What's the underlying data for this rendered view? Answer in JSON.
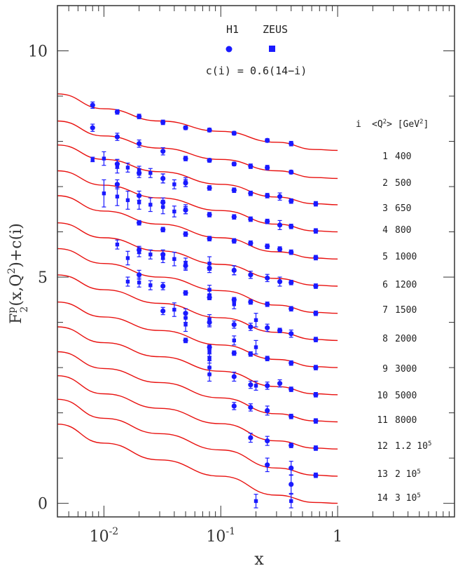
{
  "chart_data": {
    "type": "scatter",
    "title": "",
    "xlabel": "x",
    "ylabel": "F2p(x,Q2)+c(i)",
    "x_scale": "log",
    "xlim": [
      0.004,
      10
    ],
    "ylim": [
      -0.3,
      11
    ],
    "y_ticks": [
      0,
      5,
      10
    ],
    "x_tick_labels": [
      "10^-2",
      "10^-1",
      "1"
    ],
    "offset_formula": "c(i) = 0.6(14−i)",
    "table_header": {
      "i": "i",
      "q2": "<Q²> [GeV²]"
    },
    "bins": [
      {
        "i": "1",
        "q2": "400"
      },
      {
        "i": "2",
        "q2": "500"
      },
      {
        "i": "3",
        "q2": "650"
      },
      {
        "i": "4",
        "q2": "800"
      },
      {
        "i": "5",
        "q2": "1000"
      },
      {
        "i": "6",
        "q2": "1200"
      },
      {
        "i": "7",
        "q2": "1500"
      },
      {
        "i": "8",
        "q2": "2000"
      },
      {
        "i": "9",
        "q2": "3000"
      },
      {
        "i": "10",
        "q2": "5000"
      },
      {
        "i": "11",
        "q2": "8000"
      },
      {
        "i": "12",
        "q2": "1.2 10^5"
      },
      {
        "i": "13",
        "q2": "2 10^5"
      },
      {
        "i": "14",
        "q2": "3 10^5"
      }
    ],
    "curves": [
      {
        "bin": 1,
        "points": [
          [
            0.004,
            9.05
          ],
          [
            0.01,
            8.72
          ],
          [
            0.03,
            8.45
          ],
          [
            0.1,
            8.22
          ],
          [
            0.3,
            7.98
          ],
          [
            0.65,
            7.82
          ],
          [
            1.0,
            7.8
          ]
        ]
      },
      {
        "bin": 2,
        "points": [
          [
            0.004,
            8.45
          ],
          [
            0.01,
            8.12
          ],
          [
            0.03,
            7.85
          ],
          [
            0.1,
            7.6
          ],
          [
            0.3,
            7.35
          ],
          [
            0.65,
            7.2
          ],
          [
            1.0,
            7.18
          ]
        ]
      },
      {
        "bin": 3,
        "points": [
          [
            0.004,
            7.92
          ],
          [
            0.01,
            7.6
          ],
          [
            0.03,
            7.33
          ],
          [
            0.1,
            7.05
          ],
          [
            0.3,
            6.77
          ],
          [
            0.65,
            6.62
          ],
          [
            1.0,
            6.6
          ]
        ]
      },
      {
        "bin": 4,
        "points": [
          [
            0.004,
            7.35
          ],
          [
            0.01,
            7.03
          ],
          [
            0.03,
            6.75
          ],
          [
            0.1,
            6.47
          ],
          [
            0.3,
            6.17
          ],
          [
            0.65,
            6.02
          ],
          [
            1.0,
            6.0
          ]
        ]
      },
      {
        "bin": 5,
        "points": [
          [
            0.004,
            6.8
          ],
          [
            0.01,
            6.46
          ],
          [
            0.03,
            6.17
          ],
          [
            0.1,
            5.87
          ],
          [
            0.3,
            5.56
          ],
          [
            0.65,
            5.42
          ],
          [
            1.0,
            5.4
          ]
        ]
      },
      {
        "bin": 6,
        "points": [
          [
            0.004,
            6.2
          ],
          [
            0.01,
            5.87
          ],
          [
            0.03,
            5.58
          ],
          [
            0.1,
            5.28
          ],
          [
            0.3,
            4.97
          ],
          [
            0.65,
            4.82
          ],
          [
            1.0,
            4.8
          ]
        ]
      },
      {
        "bin": 7,
        "points": [
          [
            0.004,
            5.63
          ],
          [
            0.01,
            5.3
          ],
          [
            0.03,
            5.0
          ],
          [
            0.1,
            4.7
          ],
          [
            0.3,
            4.38
          ],
          [
            0.65,
            4.22
          ],
          [
            1.0,
            4.2
          ]
        ]
      },
      {
        "bin": 8,
        "points": [
          [
            0.004,
            5.05
          ],
          [
            0.01,
            4.72
          ],
          [
            0.03,
            4.42
          ],
          [
            0.1,
            4.1
          ],
          [
            0.3,
            3.78
          ],
          [
            0.65,
            3.62
          ],
          [
            1.0,
            3.6
          ]
        ]
      },
      {
        "bin": 9,
        "points": [
          [
            0.004,
            4.45
          ],
          [
            0.01,
            4.12
          ],
          [
            0.03,
            3.82
          ],
          [
            0.1,
            3.5
          ],
          [
            0.3,
            3.18
          ],
          [
            0.65,
            3.02
          ],
          [
            1.0,
            3.0
          ]
        ]
      },
      {
        "bin": 10,
        "points": [
          [
            0.004,
            3.9
          ],
          [
            0.01,
            3.55
          ],
          [
            0.03,
            3.24
          ],
          [
            0.1,
            2.92
          ],
          [
            0.3,
            2.58
          ],
          [
            0.65,
            2.42
          ],
          [
            1.0,
            2.4
          ]
        ]
      },
      {
        "bin": 11,
        "points": [
          [
            0.004,
            3.35
          ],
          [
            0.01,
            2.98
          ],
          [
            0.03,
            2.67
          ],
          [
            0.1,
            2.33
          ],
          [
            0.3,
            1.98
          ],
          [
            0.65,
            1.82
          ],
          [
            1.0,
            1.8
          ]
        ]
      },
      {
        "bin": 12,
        "points": [
          [
            0.004,
            2.82
          ],
          [
            0.01,
            2.42
          ],
          [
            0.03,
            2.1
          ],
          [
            0.1,
            1.76
          ],
          [
            0.3,
            1.38
          ],
          [
            0.65,
            1.22
          ],
          [
            1.0,
            1.2
          ]
        ]
      },
      {
        "bin": 13,
        "points": [
          [
            0.004,
            2.3
          ],
          [
            0.01,
            1.88
          ],
          [
            0.03,
            1.54
          ],
          [
            0.1,
            1.18
          ],
          [
            0.3,
            0.78
          ],
          [
            0.65,
            0.62
          ],
          [
            1.0,
            0.6
          ]
        ]
      },
      {
        "bin": 14,
        "points": [
          [
            0.004,
            1.75
          ],
          [
            0.01,
            1.33
          ],
          [
            0.03,
            0.96
          ],
          [
            0.1,
            0.6
          ],
          [
            0.3,
            0.18
          ],
          [
            0.65,
            0.02
          ],
          [
            1.0,
            0.0
          ]
        ]
      }
    ],
    "series": [
      {
        "name": "H1",
        "marker": "circle",
        "color": "#1a1aff",
        "points": [
          [
            0.008,
            8.8,
            0.07
          ],
          [
            0.013,
            8.65,
            0.05
          ],
          [
            0.02,
            8.55,
            0.05
          ],
          [
            0.032,
            8.42,
            0.05
          ],
          [
            0.05,
            8.3,
            0.04
          ],
          [
            0.08,
            8.25,
            0.04
          ],
          [
            0.13,
            8.18,
            0.04
          ],
          [
            0.25,
            8.02,
            0.04
          ],
          [
            0.4,
            7.95,
            0.05
          ],
          [
            0.008,
            8.3,
            0.08
          ],
          [
            0.013,
            8.1,
            0.08
          ],
          [
            0.02,
            7.95,
            0.08
          ],
          [
            0.032,
            7.78,
            0.08
          ],
          [
            0.05,
            7.62,
            0.05
          ],
          [
            0.08,
            7.58,
            0.04
          ],
          [
            0.13,
            7.5,
            0.04
          ],
          [
            0.18,
            7.45,
            0.05
          ],
          [
            0.25,
            7.42,
            0.05
          ],
          [
            0.4,
            7.32,
            0.04
          ],
          [
            0.013,
            7.5,
            0.1
          ],
          [
            0.02,
            7.3,
            0.1
          ],
          [
            0.032,
            7.18,
            0.1
          ],
          [
            0.05,
            7.08,
            0.08
          ],
          [
            0.08,
            6.97,
            0.05
          ],
          [
            0.13,
            6.92,
            0.05
          ],
          [
            0.18,
            6.85,
            0.05
          ],
          [
            0.25,
            6.8,
            0.05
          ],
          [
            0.32,
            6.78,
            0.08
          ],
          [
            0.4,
            6.68,
            0.05
          ],
          [
            0.65,
            6.62,
            0.05
          ],
          [
            0.013,
            7.05,
            0.1
          ],
          [
            0.02,
            6.8,
            0.1
          ],
          [
            0.032,
            6.65,
            0.1
          ],
          [
            0.05,
            6.48,
            0.08
          ],
          [
            0.08,
            6.38,
            0.05
          ],
          [
            0.13,
            6.33,
            0.05
          ],
          [
            0.18,
            6.28,
            0.05
          ],
          [
            0.25,
            6.23,
            0.05
          ],
          [
            0.32,
            6.15,
            0.1
          ],
          [
            0.4,
            6.12,
            0.05
          ],
          [
            0.65,
            6.02,
            0.05
          ],
          [
            0.02,
            6.2,
            0.05
          ],
          [
            0.032,
            6.05,
            0.05
          ],
          [
            0.05,
            5.95,
            0.05
          ],
          [
            0.08,
            5.85,
            0.05
          ],
          [
            0.13,
            5.8,
            0.05
          ],
          [
            0.18,
            5.75,
            0.05
          ],
          [
            0.25,
            5.68,
            0.05
          ],
          [
            0.32,
            5.62,
            0.05
          ],
          [
            0.4,
            5.55,
            0.05
          ],
          [
            0.65,
            5.43,
            0.05
          ],
          [
            0.02,
            5.6,
            0.08
          ],
          [
            0.032,
            5.5,
            0.1
          ],
          [
            0.05,
            5.25,
            0.1
          ],
          [
            0.08,
            5.2,
            0.1
          ],
          [
            0.13,
            5.15,
            0.1
          ],
          [
            0.18,
            5.05,
            0.08
          ],
          [
            0.25,
            4.98,
            0.08
          ],
          [
            0.32,
            4.9,
            0.1
          ],
          [
            0.4,
            4.88,
            0.05
          ],
          [
            0.65,
            4.8,
            0.05
          ],
          [
            0.02,
            5.05,
            0.1
          ],
          [
            0.032,
            4.8,
            0.08
          ],
          [
            0.05,
            4.65,
            0.05
          ],
          [
            0.08,
            4.55,
            0.05
          ],
          [
            0.13,
            4.5,
            0.05
          ],
          [
            0.18,
            4.45,
            0.05
          ],
          [
            0.25,
            4.4,
            0.05
          ],
          [
            0.4,
            4.3,
            0.05
          ],
          [
            0.65,
            4.2,
            0.05
          ],
          [
            0.032,
            4.25,
            0.08
          ],
          [
            0.05,
            4.2,
            0.1
          ],
          [
            0.08,
            4.0,
            0.1
          ],
          [
            0.13,
            3.95,
            0.08
          ],
          [
            0.18,
            3.9,
            0.08
          ],
          [
            0.25,
            3.88,
            0.08
          ],
          [
            0.32,
            3.82,
            0.05
          ],
          [
            0.4,
            3.75,
            0.08
          ],
          [
            0.65,
            3.62,
            0.05
          ],
          [
            0.05,
            3.6,
            0.05
          ],
          [
            0.08,
            3.45,
            0.05
          ],
          [
            0.13,
            3.32,
            0.05
          ],
          [
            0.18,
            3.3,
            0.05
          ],
          [
            0.25,
            3.2,
            0.05
          ],
          [
            0.4,
            3.1,
            0.05
          ],
          [
            0.65,
            3.0,
            0.05
          ],
          [
            0.13,
            2.8,
            0.1
          ],
          [
            0.18,
            2.62,
            0.08
          ],
          [
            0.25,
            2.6,
            0.08
          ],
          [
            0.32,
            2.65,
            0.08
          ],
          [
            0.4,
            2.52,
            0.05
          ],
          [
            0.65,
            2.4,
            0.05
          ],
          [
            0.13,
            2.15,
            0.08
          ],
          [
            0.18,
            2.12,
            0.08
          ],
          [
            0.25,
            2.05,
            0.1
          ],
          [
            0.4,
            1.92,
            0.05
          ],
          [
            0.65,
            1.82,
            0.05
          ],
          [
            0.18,
            1.45,
            0.1
          ],
          [
            0.25,
            1.38,
            0.1
          ],
          [
            0.4,
            1.28,
            0.05
          ],
          [
            0.65,
            1.22,
            0.05
          ],
          [
            0.25,
            0.85,
            0.15
          ],
          [
            0.4,
            0.78,
            0.15
          ],
          [
            0.65,
            0.62,
            0.05
          ],
          [
            0.4,
            0.42,
            0.2
          ]
        ]
      },
      {
        "name": "ZEUS",
        "marker": "square",
        "color": "#1a1aff",
        "points": [
          [
            0.008,
            7.6,
            0.05
          ],
          [
            0.01,
            7.62,
            0.15
          ],
          [
            0.013,
            7.45,
            0.15
          ],
          [
            0.016,
            7.42,
            0.1
          ],
          [
            0.02,
            7.35,
            0.1
          ],
          [
            0.025,
            7.3,
            0.1
          ],
          [
            0.032,
            7.18,
            0.1
          ],
          [
            0.04,
            7.05,
            0.1
          ],
          [
            0.05,
            7.1,
            0.1
          ],
          [
            0.01,
            6.85,
            0.3
          ],
          [
            0.013,
            6.78,
            0.2
          ],
          [
            0.016,
            6.7,
            0.2
          ],
          [
            0.02,
            6.65,
            0.15
          ],
          [
            0.025,
            6.6,
            0.15
          ],
          [
            0.032,
            6.55,
            0.15
          ],
          [
            0.04,
            6.45,
            0.12
          ],
          [
            0.05,
            6.5,
            0.1
          ],
          [
            0.013,
            5.72,
            0.1
          ],
          [
            0.016,
            5.42,
            0.15
          ],
          [
            0.02,
            5.55,
            0.1
          ],
          [
            0.025,
            5.5,
            0.1
          ],
          [
            0.032,
            5.42,
            0.1
          ],
          [
            0.04,
            5.4,
            0.15
          ],
          [
            0.05,
            5.3,
            0.12
          ],
          [
            0.08,
            5.3,
            0.15
          ],
          [
            0.13,
            5.15,
            0.1
          ],
          [
            0.016,
            4.9,
            0.1
          ],
          [
            0.02,
            4.88,
            0.1
          ],
          [
            0.025,
            4.82,
            0.1
          ],
          [
            0.04,
            4.28,
            0.15
          ],
          [
            0.05,
            4.1,
            0.1
          ],
          [
            0.08,
            4.72,
            0.1
          ],
          [
            0.08,
            4.6,
            0.1
          ],
          [
            0.13,
            4.4,
            0.1
          ],
          [
            0.05,
            3.95,
            0.15
          ],
          [
            0.08,
            4.05,
            0.12
          ],
          [
            0.13,
            3.6,
            0.1
          ],
          [
            0.2,
            4.05,
            0.15
          ],
          [
            0.2,
            3.45,
            0.15
          ],
          [
            0.08,
            3.35,
            0.1
          ],
          [
            0.08,
            3.2,
            0.1
          ],
          [
            0.08,
            3.0,
            0.15
          ],
          [
            0.08,
            2.85,
            0.15
          ],
          [
            0.2,
            2.6,
            0.1
          ],
          [
            0.2,
            0.05,
            0.15
          ],
          [
            0.4,
            0.05,
            0.15
          ]
        ]
      }
    ]
  }
}
